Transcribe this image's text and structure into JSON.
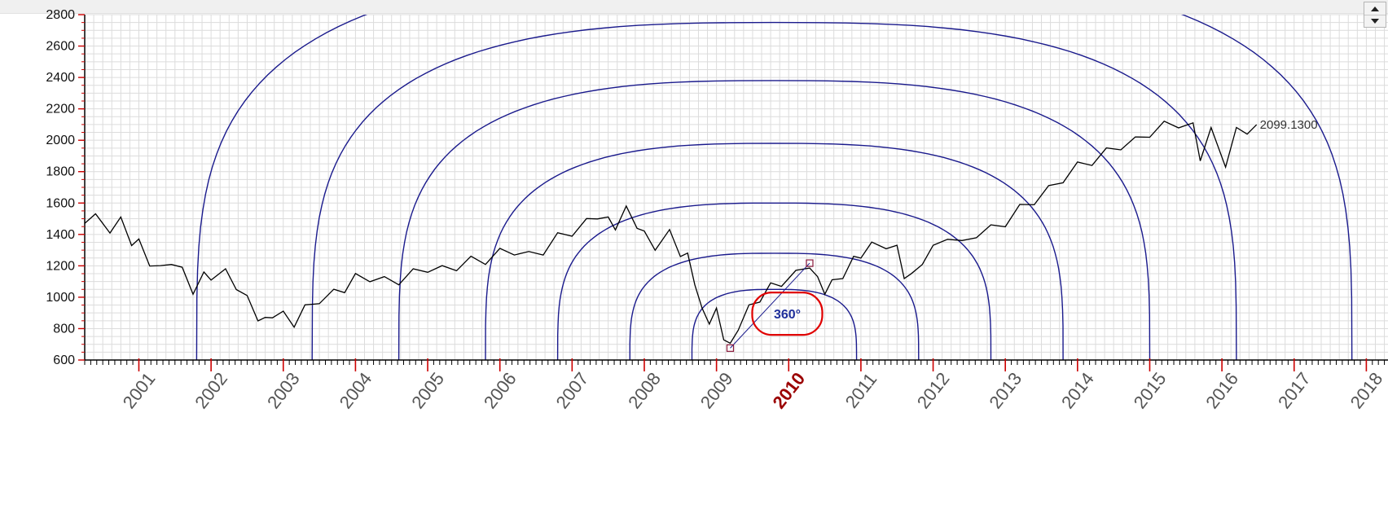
{
  "chart_data": {
    "type": "line",
    "title": "",
    "xlabel": "",
    "ylabel": "",
    "xlim": [
      2000.25,
      2018.3
    ],
    "ylim": [
      600,
      2800
    ],
    "y_ticks": [
      600,
      800,
      1000,
      1200,
      1400,
      1600,
      1800,
      2000,
      2200,
      2400,
      2600,
      2800
    ],
    "x_ticks": [
      2001,
      2002,
      2003,
      2004,
      2005,
      2006,
      2007,
      2008,
      2009,
      2010,
      2011,
      2012,
      2013,
      2014,
      2015,
      2016,
      2017,
      2018
    ],
    "highlighted_x_tick": 2010,
    "grid": true,
    "series": [
      {
        "values": [
          [
            2000.25,
            1470
          ],
          [
            2000.4,
            1500
          ],
          [
            2000.6,
            1440
          ],
          [
            2000.75,
            1480
          ],
          [
            2000.9,
            1360
          ],
          [
            2001.0,
            1340
          ],
          [
            2001.15,
            1230
          ],
          [
            2001.3,
            1170
          ],
          [
            2001.45,
            1240
          ],
          [
            2001.6,
            1160
          ],
          [
            2001.75,
            1050
          ],
          [
            2001.9,
            1130
          ],
          [
            2002.0,
            1140
          ],
          [
            2002.2,
            1150
          ],
          [
            2002.35,
            1080
          ],
          [
            2002.5,
            980
          ],
          [
            2002.65,
            880
          ],
          [
            2002.75,
            840
          ],
          [
            2002.85,
            900
          ],
          [
            2003.0,
            880
          ],
          [
            2003.15,
            840
          ],
          [
            2003.3,
            920
          ],
          [
            2003.5,
            990
          ],
          [
            2003.7,
            1020
          ],
          [
            2003.85,
            1060
          ],
          [
            2004.0,
            1120
          ],
          [
            2004.2,
            1130
          ],
          [
            2004.4,
            1100
          ],
          [
            2004.6,
            1110
          ],
          [
            2004.8,
            1150
          ],
          [
            2005.0,
            1190
          ],
          [
            2005.2,
            1170
          ],
          [
            2005.4,
            1200
          ],
          [
            2005.6,
            1230
          ],
          [
            2005.8,
            1240
          ],
          [
            2006.0,
            1280
          ],
          [
            2006.2,
            1300
          ],
          [
            2006.4,
            1260
          ],
          [
            2006.6,
            1300
          ],
          [
            2006.8,
            1380
          ],
          [
            2007.0,
            1420
          ],
          [
            2007.2,
            1470
          ],
          [
            2007.35,
            1530
          ],
          [
            2007.5,
            1480
          ],
          [
            2007.6,
            1460
          ],
          [
            2007.75,
            1550
          ],
          [
            2007.9,
            1470
          ],
          [
            2008.0,
            1390
          ],
          [
            2008.15,
            1330
          ],
          [
            2008.35,
            1400
          ],
          [
            2008.5,
            1290
          ],
          [
            2008.6,
            1250
          ],
          [
            2008.7,
            1110
          ],
          [
            2008.8,
            900
          ],
          [
            2008.9,
            860
          ],
          [
            2009.0,
            900
          ],
          [
            2009.1,
            760
          ],
          [
            2009.19,
            676
          ],
          [
            2009.3,
            820
          ],
          [
            2009.45,
            920
          ],
          [
            2009.6,
            1000
          ],
          [
            2009.75,
            1060
          ],
          [
            2009.9,
            1100
          ],
          [
            2010.1,
            1140
          ],
          [
            2010.29,
            1217
          ],
          [
            2010.4,
            1100
          ],
          [
            2010.5,
            1050
          ],
          [
            2010.6,
            1080
          ],
          [
            2010.75,
            1150
          ],
          [
            2010.9,
            1230
          ],
          [
            2011.0,
            1280
          ],
          [
            2011.15,
            1320
          ],
          [
            2011.35,
            1340
          ],
          [
            2011.5,
            1300
          ],
          [
            2011.6,
            1150
          ],
          [
            2011.7,
            1120
          ],
          [
            2011.85,
            1240
          ],
          [
            2012.0,
            1300
          ],
          [
            2012.2,
            1400
          ],
          [
            2012.4,
            1330
          ],
          [
            2012.6,
            1410
          ],
          [
            2012.8,
            1430
          ],
          [
            2013.0,
            1480
          ],
          [
            2013.2,
            1560
          ],
          [
            2013.4,
            1620
          ],
          [
            2013.6,
            1680
          ],
          [
            2013.8,
            1760
          ],
          [
            2014.0,
            1830
          ],
          [
            2014.2,
            1870
          ],
          [
            2014.4,
            1920
          ],
          [
            2014.6,
            1970
          ],
          [
            2014.8,
            1990
          ],
          [
            2015.0,
            2050
          ],
          [
            2015.2,
            2090
          ],
          [
            2015.4,
            2110
          ],
          [
            2015.6,
            2080
          ],
          [
            2015.7,
            1900
          ],
          [
            2015.85,
            2050
          ],
          [
            2016.05,
            1860
          ],
          [
            2016.2,
            2050
          ],
          [
            2016.35,
            2070
          ],
          [
            2016.48,
            2099.13
          ]
        ]
      }
    ],
    "last_value_label": "2099.1300",
    "annotation": {
      "label": "360°",
      "anchor_start": [
        2009.19,
        676
      ],
      "anchor_end": [
        2010.29,
        1217
      ]
    }
  },
  "colors": {
    "price_line": "#000000",
    "arc_line": "#1a1a8c",
    "annotation_ring": "#e00000",
    "annotation_text": "#1f2f9b",
    "grid": "#dcdcdc",
    "axis_tick": "#cc0000"
  },
  "icons": {
    "spin_up": "triangle-up-icon",
    "spin_down": "triangle-down-icon"
  }
}
